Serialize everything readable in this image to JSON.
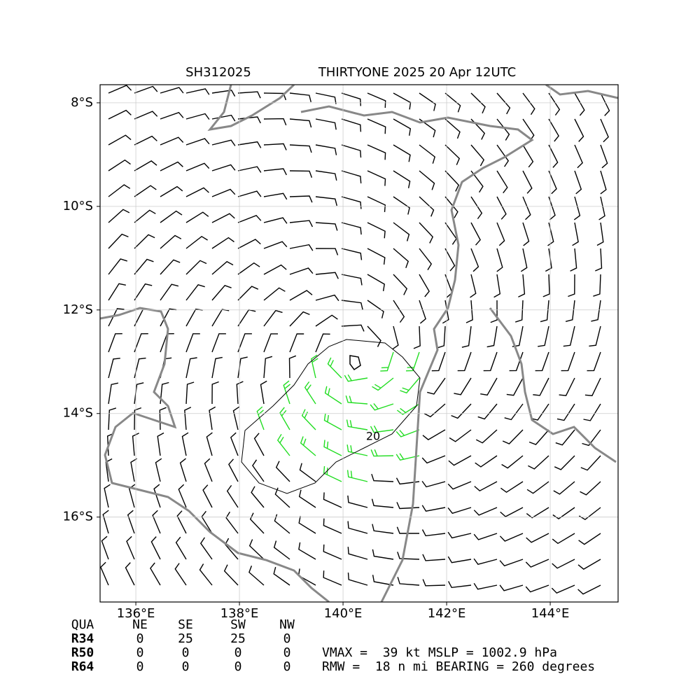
{
  "map": {
    "storm_id": "SH312025",
    "title": "THIRTYONE 2025 20 Apr 12UTC",
    "xlim": [
      135.31,
      145.31
    ],
    "ylim": [
      -7.65,
      -17.64
    ],
    "xticks": [
      {
        "value": 136,
        "label": "136°E"
      },
      {
        "value": 138,
        "label": "138°E"
      },
      {
        "value": 140,
        "label": "140°E"
      },
      {
        "value": 142,
        "label": "142°E"
      },
      {
        "value": 144,
        "label": "144°E"
      }
    ],
    "yticks": [
      {
        "value": -8,
        "label": "8°S"
      },
      {
        "value": -10,
        "label": "10°S"
      },
      {
        "value": -12,
        "label": "12°S"
      },
      {
        "value": -14,
        "label": "14°S"
      },
      {
        "value": -16,
        "label": "16°S"
      }
    ],
    "grid": true,
    "contour_label": "20"
  },
  "table": {
    "header": [
      "QUA",
      "NE",
      "SE",
      "SW",
      "NW"
    ],
    "rows": [
      [
        "R34",
        0,
        25,
        25,
        0
      ],
      [
        "R50",
        0,
        0,
        0,
        0
      ],
      [
        "R64",
        0,
        0,
        0,
        0
      ]
    ]
  },
  "stats": [
    "VMAX =  39 kt MSLP = 1002.9 hPa",
    "RMW =  18 n mi BEARING = 260 degrees"
  ]
}
